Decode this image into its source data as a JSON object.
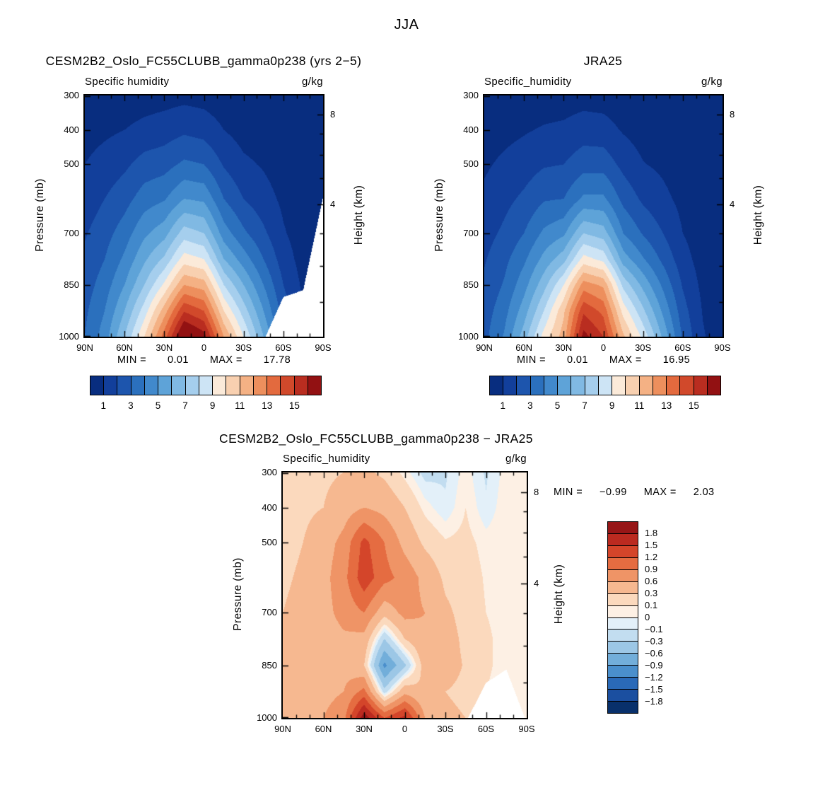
{
  "figure_title": "JJA",
  "chart_data": [
    {
      "id": "model",
      "type": "filled-contour",
      "title": "CESM2B2_Oslo_FC55CLUBB_gamma0p238 (yrs 2−5)",
      "field_label": "Specific humidity",
      "units": "g/kg",
      "ylabel": "Pressure (mb)",
      "ylabel_right": "Height (km)",
      "x_axis": "latitude",
      "xlim_lat": [
        90,
        -90
      ],
      "ylim": [
        300,
        1000
      ],
      "x_tick_labels": [
        "90N",
        "60N",
        "30N",
        "0",
        "30S",
        "60S",
        "90S"
      ],
      "x_tick_lats": [
        90,
        60,
        30,
        0,
        -30,
        -60,
        -90
      ],
      "y_ticks": [
        300,
        400,
        500,
        700,
        850,
        1000
      ],
      "right_ticks": [
        {
          "km": 8,
          "label": "8"
        },
        {
          "km": 4,
          "label": "4"
        }
      ],
      "stats": {
        "min_label": "MIN =",
        "min": "0.01",
        "max_label": "MAX =",
        "max": "17.78"
      },
      "levels": [
        1,
        2,
        3,
        4,
        5,
        6,
        7,
        8,
        9,
        10,
        11,
        12,
        13,
        14,
        15,
        16
      ],
      "colors": [
        "#082d7f",
        "#123f9b",
        "#1d55ad",
        "#2b70bd",
        "#4189cc",
        "#5ea3d8",
        "#80b9e3",
        "#a5ceed",
        "#cde4f5",
        "#fbead9",
        "#f8d0b0",
        "#f4b184",
        "#ed8f5d",
        "#e36a3e",
        "#d1492b",
        "#b92d20",
        "#921112"
      ],
      "colorbar_tick_values": [
        1,
        3,
        5,
        7,
        9,
        11,
        13,
        15
      ],
      "lats": [
        90,
        75,
        60,
        45,
        30,
        15,
        0,
        -15,
        -30,
        -45,
        -60,
        -75,
        -90
      ],
      "pressures": [
        300,
        400,
        500,
        600,
        700,
        775,
        850,
        925,
        1000
      ],
      "values": [
        [
          0.2,
          0.3,
          0.4,
          0.5,
          0.6,
          0.7,
          0.6,
          0.4,
          0.25,
          0.2,
          0.15,
          0.1,
          0.05
        ],
        [
          0.6,
          0.8,
          1.0,
          1.3,
          1.5,
          1.8,
          1.6,
          1.0,
          0.6,
          0.5,
          0.3,
          0.2,
          0.1
        ],
        [
          1.0,
          1.4,
          1.8,
          2.4,
          2.6,
          3.2,
          3.0,
          1.9,
          1.2,
          0.9,
          0.5,
          0.3,
          0.15
        ],
        [
          1.4,
          2.0,
          2.6,
          3.5,
          3.9,
          5.0,
          4.8,
          3.0,
          2.0,
          1.4,
          0.8,
          0.4,
          0.2
        ],
        [
          1.9,
          2.6,
          3.5,
          4.8,
          5.6,
          7.5,
          7.0,
          4.5,
          3.2,
          2.2,
          1.1,
          0.5,
          0.25
        ],
        [
          2.2,
          3.0,
          4.2,
          5.8,
          7.2,
          9.5,
          9.0,
          6.0,
          4.5,
          3.0,
          1.5,
          0.6,
          0.3
        ],
        [
          2.5,
          3.5,
          5.0,
          7.0,
          9.2,
          12.0,
          11.5,
          8.0,
          6.0,
          4.0,
          2.0,
          0.8,
          0.35
        ],
        [
          2.8,
          4.0,
          6.0,
          8.5,
          11.5,
          14.9,
          14.0,
          10.0,
          7.5,
          5.0,
          2.5,
          1.0,
          0.4
        ],
        [
          3.0,
          4.5,
          7.0,
          10.0,
          13.5,
          17.7,
          16.5,
          12.0,
          9.0,
          6.0,
          3.0,
          1.2,
          0.5
        ]
      ],
      "surface_pressure": [
        1013,
        1013,
        1013,
        1013,
        1013,
        1013,
        1013,
        1013,
        1013,
        1013,
        885,
        865,
        595
      ]
    },
    {
      "id": "jra25",
      "type": "filled-contour",
      "title": "JRA25",
      "field_label": "Specific_humidity",
      "units": "g/kg",
      "ylabel": "Pressure (mb)",
      "ylabel_right": "Height (km)",
      "x_axis": "latitude",
      "xlim_lat": [
        90,
        -90
      ],
      "ylim": [
        300,
        1000
      ],
      "x_tick_labels": [
        "90N",
        "60N",
        "30N",
        "0",
        "30S",
        "60S",
        "90S"
      ],
      "x_tick_lats": [
        90,
        60,
        30,
        0,
        -30,
        -60,
        -90
      ],
      "y_ticks": [
        300,
        400,
        500,
        700,
        850,
        1000
      ],
      "right_ticks": [
        {
          "km": 8,
          "label": "8"
        },
        {
          "km": 4,
          "label": "4"
        }
      ],
      "stats": {
        "min_label": "MIN =",
        "min": "0.01",
        "max_label": "MAX =",
        "max": "16.95"
      },
      "levels": [
        1,
        2,
        3,
        4,
        5,
        6,
        7,
        8,
        9,
        10,
        11,
        12,
        13,
        14,
        15,
        16
      ],
      "colors": [
        "#082d7f",
        "#123f9b",
        "#1d55ad",
        "#2b70bd",
        "#4189cc",
        "#5ea3d8",
        "#80b9e3",
        "#a5ceed",
        "#cde4f5",
        "#fbead9",
        "#f8d0b0",
        "#f4b184",
        "#ed8f5d",
        "#e36a3e",
        "#d1492b",
        "#b92d20",
        "#921112"
      ],
      "colorbar_tick_values": [
        1,
        3,
        5,
        7,
        9,
        11,
        13,
        15
      ],
      "lats": [
        90,
        75,
        60,
        45,
        30,
        15,
        0,
        -15,
        -30,
        -45,
        -60,
        -75,
        -90
      ],
      "pressures": [
        300,
        400,
        500,
        600,
        700,
        775,
        850,
        925,
        1000
      ],
      "values": [
        [
          0.15,
          0.25,
          0.35,
          0.45,
          0.5,
          0.6,
          0.55,
          0.4,
          0.3,
          0.2,
          0.14,
          0.1,
          0.05
        ],
        [
          0.5,
          0.7,
          0.9,
          1.1,
          1.2,
          1.5,
          1.4,
          0.9,
          0.55,
          0.45,
          0.28,
          0.18,
          0.08
        ],
        [
          0.85,
          1.2,
          1.5,
          1.9,
          2.0,
          2.6,
          2.6,
          1.7,
          1.05,
          0.8,
          0.45,
          0.28,
          0.12
        ],
        [
          1.2,
          1.7,
          2.2,
          2.9,
          3.0,
          4.2,
          4.2,
          2.7,
          1.8,
          1.25,
          0.72,
          0.36,
          0.16
        ],
        [
          1.6,
          2.2,
          3.0,
          4.2,
          4.8,
          7.0,
          6.5,
          4.0,
          2.9,
          2.0,
          1.0,
          0.45,
          0.2
        ],
        [
          1.9,
          2.7,
          3.8,
          5.3,
          6.6,
          9.4,
          8.7,
          5.5,
          4.1,
          2.75,
          1.4,
          0.55,
          0.25
        ],
        [
          2.2,
          3.1,
          4.6,
          6.6,
          9.0,
          12.5,
          11.8,
          7.7,
          5.7,
          3.8,
          1.9,
          0.75,
          0.3
        ],
        [
          2.5,
          3.6,
          5.5,
          8.0,
          10.8,
          14.8,
          13.7,
          9.6,
          7.2,
          4.8,
          2.4,
          0.95,
          0.35
        ],
        [
          2.7,
          4.1,
          6.5,
          9.4,
          11.5,
          16.4,
          15.0,
          11.2,
          8.7,
          5.8,
          2.85,
          1.1,
          0.45
        ]
      ],
      "surface_pressure": [
        1013,
        1013,
        1013,
        1013,
        1013,
        1013,
        1013,
        1013,
        1013,
        1013,
        1013,
        1013,
        1013
      ]
    },
    {
      "id": "diff",
      "type": "filled-contour",
      "title": "CESM2B2_Oslo_FC55CLUBB_gamma0p238 − JRA25",
      "field_label": "Specific_humidity",
      "units": "g/kg",
      "ylabel": "Pressure (mb)",
      "ylabel_right": "Height (km)",
      "x_axis": "latitude",
      "xlim_lat": [
        90,
        -90
      ],
      "ylim": [
        300,
        1000
      ],
      "x_tick_labels": [
        "90N",
        "60N",
        "30N",
        "0",
        "30S",
        "60S",
        "90S"
      ],
      "x_tick_lats": [
        90,
        60,
        30,
        0,
        -30,
        -60,
        -90
      ],
      "y_ticks": [
        300,
        400,
        500,
        700,
        850,
        1000
      ],
      "right_ticks": [
        {
          "km": 8,
          "label": "8"
        },
        {
          "km": 4,
          "label": "4"
        }
      ],
      "stats": {
        "min_label": "MIN =",
        "min": "−0.99",
        "max_label": "MAX =",
        "max": "2.03"
      },
      "levels": [
        -1.8,
        -1.5,
        -1.2,
        -0.9,
        -0.6,
        -0.3,
        -0.1,
        0,
        0.1,
        0.3,
        0.6,
        0.9,
        1.2,
        1.5,
        1.8
      ],
      "colors": [
        "#08306b",
        "#1b4fa0",
        "#2a6ab8",
        "#4a8fcc",
        "#72aeda",
        "#9cc7e6",
        "#c2ddf0",
        "#e3f0f9",
        "#fdf0e4",
        "#fbd9bd",
        "#f6b890",
        "#ef9466",
        "#e56c41",
        "#d4452a",
        "#bb2a20",
        "#971617"
      ],
      "colorbar_tick_labels": [
        "1.8",
        "1.5",
        "1.2",
        "0.9",
        "0.6",
        "0.3",
        "0.1",
        "0",
        "−0.1",
        "−0.3",
        "−0.6",
        "−0.9",
        "−1.2",
        "−1.5",
        "−1.8"
      ],
      "lats": [
        90,
        75,
        60,
        45,
        30,
        15,
        0,
        -15,
        -30,
        -45,
        -60,
        -75,
        -90
      ],
      "pressures": [
        300,
        400,
        500,
        600,
        700,
        775,
        850,
        925,
        1000
      ],
      "values": [
        [
          0.15,
          0.2,
          0.25,
          0.3,
          0.35,
          0.25,
          0.05,
          -0.15,
          -0.12,
          0.05,
          -0.12,
          0.05,
          0.02
        ],
        [
          0.2,
          0.25,
          0.3,
          0.45,
          0.6,
          0.5,
          0.3,
          0.05,
          -0.08,
          0.1,
          -0.08,
          0.08,
          0.04
        ],
        [
          0.2,
          0.3,
          0.45,
          0.7,
          1.3,
          0.9,
          0.5,
          0.25,
          0.12,
          0.15,
          0.05,
          0.08,
          0.04
        ],
        [
          0.25,
          0.35,
          0.5,
          0.8,
          1.4,
          1.0,
          0.8,
          0.5,
          0.25,
          0.2,
          0.08,
          0.06,
          0.04
        ],
        [
          0.3,
          0.4,
          0.5,
          0.7,
          0.9,
          0.4,
          0.7,
          0.6,
          0.35,
          0.22,
          0.1,
          0.06,
          0.05
        ],
        [
          0.3,
          0.4,
          0.45,
          0.55,
          0.5,
          -0.3,
          0.3,
          0.55,
          0.4,
          0.25,
          0.12,
          0.06,
          0.05
        ],
        [
          0.3,
          0.4,
          0.45,
          0.5,
          0.3,
          -0.98,
          -0.35,
          0.45,
          0.4,
          0.28,
          0.12,
          0.06,
          0.05
        ],
        [
          0.3,
          0.45,
          0.5,
          0.6,
          1.0,
          -0.2,
          0.5,
          0.3,
          0.3,
          0.25,
          0.1,
          0.05,
          0.05
        ],
        [
          0.3,
          0.5,
          0.6,
          0.8,
          2.0,
          1.2,
          1.6,
          0.6,
          0.35,
          0.3,
          0.15,
          0.08,
          0.05
        ]
      ],
      "surface_pressure": [
        1013,
        1013,
        1013,
        1013,
        1013,
        1013,
        1013,
        1013,
        1013,
        1013,
        900,
        862,
        1013
      ]
    }
  ]
}
